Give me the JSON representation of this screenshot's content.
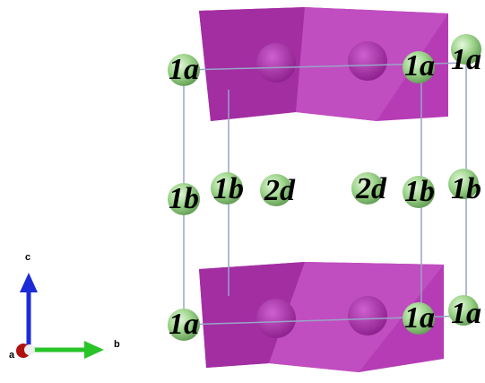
{
  "sites": [
    {
      "label": "1a"
    },
    {
      "label": "1a"
    },
    {
      "label": "1a"
    },
    {
      "label": "1b"
    },
    {
      "label": "1b"
    },
    {
      "label": "2d"
    },
    {
      "label": "2d"
    },
    {
      "label": "1b"
    },
    {
      "label": "1b"
    },
    {
      "label": "1a"
    },
    {
      "label": "1a"
    },
    {
      "label": "1a"
    }
  ],
  "axes": {
    "c": "c",
    "b": "b",
    "a": "a"
  }
}
